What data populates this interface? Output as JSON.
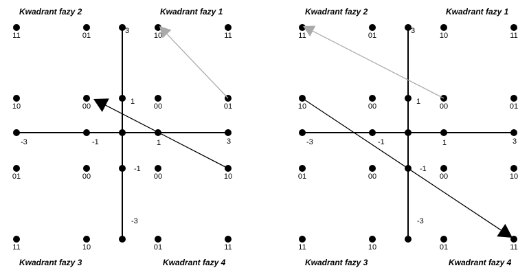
{
  "quadrant_titles": {
    "q1": "Kwadrant fazy 1",
    "q2": "Kwadrant fazy 2",
    "q3": "Kwadrant fazy 3",
    "q4": "Kwadrant fazy 4"
  },
  "tick_labels": {
    "x_neg3": "-3",
    "x_neg1": "-1",
    "x_pos1": "1",
    "x_pos3": "3",
    "y_pos3": "3",
    "y_pos1": "1",
    "y_neg1": "-1",
    "y_neg3": "-3"
  },
  "constellation_labels": {
    "q2": [
      [
        "11",
        "01"
      ],
      [
        "10",
        "00"
      ]
    ],
    "q1": [
      [
        "10",
        "11"
      ],
      [
        "00",
        "01"
      ]
    ],
    "q3": [
      [
        "01",
        "00"
      ],
      [
        "11",
        "10"
      ]
    ],
    "q4": [
      [
        "00",
        "10"
      ],
      [
        "01",
        "11"
      ]
    ]
  },
  "colors": {
    "line": "#000000",
    "gray_arrow": "#aaaaaa",
    "black_arrow": "#000000"
  }
}
